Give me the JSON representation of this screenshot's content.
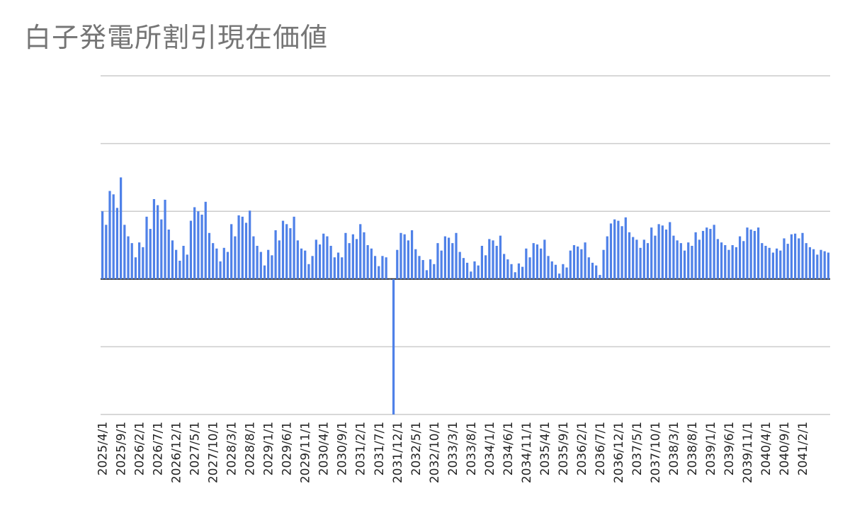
{
  "title": "白子発電所割引現在価値",
  "colors": {
    "bar": "#4f81e8",
    "grid": "#cccccc",
    "axis": "#222222",
    "title": "#757575"
  },
  "chart_data": {
    "type": "bar",
    "title": "白子発電所割引現在価値",
    "xlabel": "",
    "ylabel": "",
    "ylim": [
      -200,
      300
    ],
    "grid": true,
    "legend": "none",
    "y_ticks_labeled": false,
    "x_tick_labels": [
      "2025/4/1",
      "2025/9/1",
      "2026/2/1",
      "2026/7/1",
      "2026/12/1",
      "2027/5/1",
      "2027/10/1",
      "2028/3/1",
      "2028/8/1",
      "2029/1/1",
      "2029/6/1",
      "2029/11/1",
      "2030/4/1",
      "2030/9/1",
      "2031/2/1",
      "2031/7/1",
      "2031/12/1",
      "2032/5/1",
      "2032/10/1",
      "2033/3/1",
      "2033/8/1",
      "2034/1/1",
      "2034/6/1",
      "2034/11/1",
      "2035/4/1",
      "2035/9/1",
      "2036/2/1",
      "2036/7/1",
      "2036/12/1",
      "2037/5/1",
      "2037/10/1",
      "2038/3/1",
      "2038/8/1",
      "2039/1/1",
      "2039/6/1",
      "2039/11/1",
      "2040/4/1",
      "2040/9/1",
      "2041/2/1"
    ],
    "x_start": "2025/4/1",
    "x_end": "2041/3/1",
    "interval": "monthly",
    "values": [
      100,
      80,
      130,
      125,
      105,
      150,
      80,
      63,
      53,
      32,
      54,
      47,
      92,
      74,
      118,
      109,
      88,
      117,
      73,
      57,
      43,
      27,
      49,
      36,
      86,
      106,
      100,
      95,
      114,
      68,
      53,
      45,
      26,
      46,
      40,
      81,
      63,
      94,
      92,
      83,
      101,
      63,
      49,
      40,
      20,
      43,
      35,
      72,
      57,
      86,
      81,
      75,
      92,
      57,
      45,
      42,
      22,
      34,
      58,
      51,
      67,
      63,
      49,
      32,
      39,
      32,
      68,
      53,
      66,
      59,
      81,
      69,
      50,
      45,
      34,
      19,
      34,
      32,
      0,
      -200,
      43,
      68,
      66,
      57,
      72,
      44,
      34,
      28,
      13,
      29,
      22,
      53,
      42,
      63,
      61,
      53,
      68,
      40,
      31,
      24,
      11,
      26,
      20,
      49,
      35,
      59,
      57,
      49,
      64,
      37,
      29,
      22,
      10,
      23,
      18,
      45,
      32,
      53,
      51,
      45,
      58,
      34,
      26,
      21,
      8,
      22,
      17,
      42,
      50,
      48,
      44,
      54,
      32,
      24,
      20,
      6,
      43,
      63,
      82,
      88,
      86,
      78,
      91,
      69,
      62,
      58,
      46,
      58,
      53,
      76,
      64,
      81,
      79,
      73,
      84,
      64,
      57,
      53,
      42,
      54,
      49,
      69,
      58,
      71,
      76,
      74,
      80,
      59,
      54,
      50,
      43,
      50,
      47,
      63,
      56,
      76,
      73,
      71,
      76,
      53,
      49,
      46,
      39,
      45,
      42,
      60,
      52,
      66,
      67,
      60,
      68,
      53,
      47,
      44,
      36,
      43,
      41,
      39
    ]
  }
}
